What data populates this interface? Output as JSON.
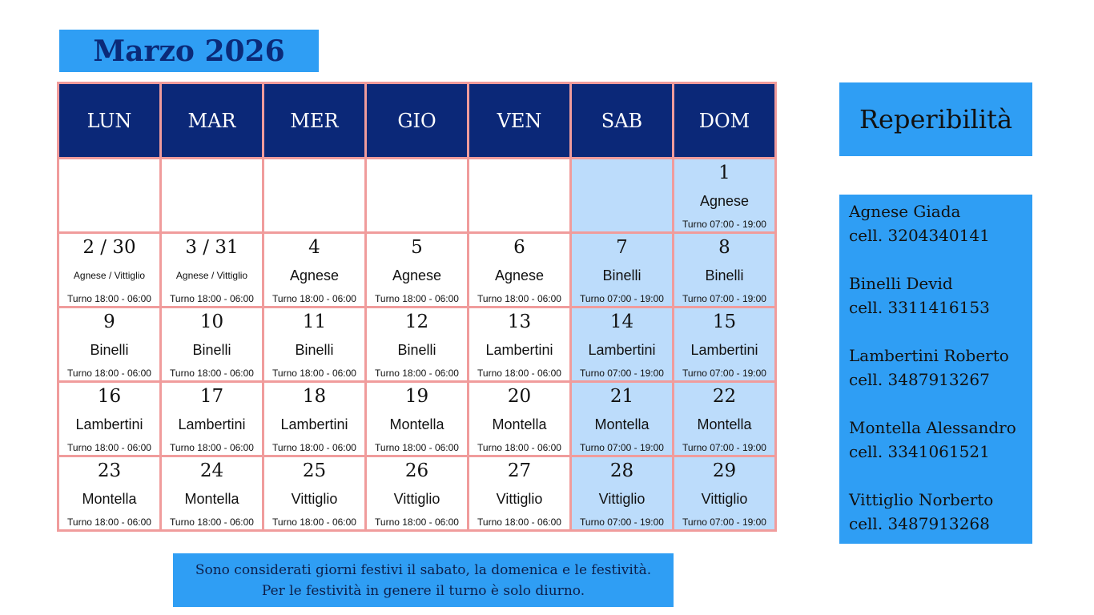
{
  "title": "Marzo 2026",
  "calendar": {
    "headers": [
      "LUN",
      "MAR",
      "MER",
      "GIO",
      "VEN",
      "SAB",
      "DOM"
    ],
    "weeks": [
      [
        null,
        null,
        null,
        null,
        null,
        null,
        {
          "day": "1",
          "name": "Agnese",
          "shift": "Turno 07:00 - 19:00"
        }
      ],
      [
        {
          "day": "2 / 30",
          "name": "Agnese / Vittiglio",
          "shift": "Turno 18:00 - 06:00"
        },
        {
          "day": "3 / 31",
          "name": "Agnese / Vittiglio",
          "shift": "Turno 18:00 - 06:00"
        },
        {
          "day": "4",
          "name": "Agnese",
          "shift": "Turno 18:00 - 06:00"
        },
        {
          "day": "5",
          "name": "Agnese",
          "shift": "Turno 18:00 - 06:00"
        },
        {
          "day": "6",
          "name": "Agnese",
          "shift": "Turno 18:00 - 06:00"
        },
        {
          "day": "7",
          "name": "Binelli",
          "shift": "Turno 07:00 - 19:00"
        },
        {
          "day": "8",
          "name": "Binelli",
          "shift": "Turno 07:00 - 19:00"
        }
      ],
      [
        {
          "day": "9",
          "name": "Binelli",
          "shift": "Turno 18:00 - 06:00"
        },
        {
          "day": "10",
          "name": "Binelli",
          "shift": "Turno 18:00 - 06:00"
        },
        {
          "day": "11",
          "name": "Binelli",
          "shift": "Turno 18:00 - 06:00"
        },
        {
          "day": "12",
          "name": "Binelli",
          "shift": "Turno 18:00 - 06:00"
        },
        {
          "day": "13",
          "name": "Lambertini",
          "shift": "Turno 18:00 - 06:00"
        },
        {
          "day": "14",
          "name": "Lambertini",
          "shift": "Turno 07:00 - 19:00"
        },
        {
          "day": "15",
          "name": "Lambertini",
          "shift": "Turno 07:00 - 19:00"
        }
      ],
      [
        {
          "day": "16",
          "name": "Lambertini",
          "shift": "Turno 18:00 - 06:00"
        },
        {
          "day": "17",
          "name": "Lambertini",
          "shift": "Turno 18:00 - 06:00"
        },
        {
          "day": "18",
          "name": "Lambertini",
          "shift": "Turno 18:00 - 06:00"
        },
        {
          "day": "19",
          "name": "Montella",
          "shift": "Turno 18:00 - 06:00"
        },
        {
          "day": "20",
          "name": "Montella",
          "shift": "Turno 18:00 - 06:00"
        },
        {
          "day": "21",
          "name": "Montella",
          "shift": "Turno 07:00 - 19:00"
        },
        {
          "day": "22",
          "name": "Montella",
          "shift": "Turno 07:00 - 19:00"
        }
      ],
      [
        {
          "day": "23",
          "name": "Montella",
          "shift": "Turno 18:00 - 06:00"
        },
        {
          "day": "24",
          "name": "Montella",
          "shift": "Turno 18:00 - 06:00"
        },
        {
          "day": "25",
          "name": "Vittiglio",
          "shift": "Turno 18:00 - 06:00"
        },
        {
          "day": "26",
          "name": "Vittiglio",
          "shift": "Turno 18:00 - 06:00"
        },
        {
          "day": "27",
          "name": "Vittiglio",
          "shift": "Turno 18:00 - 06:00"
        },
        {
          "day": "28",
          "name": "Vittiglio",
          "shift": "Turno 07:00 - 19:00"
        },
        {
          "day": "29",
          "name": "Vittiglio",
          "shift": "Turno 07:00 - 19:00"
        }
      ]
    ]
  },
  "sidebar": {
    "title": "Reperibilità",
    "contacts": [
      {
        "name": "Agnese Giada",
        "phone": "cell. 3204340141"
      },
      {
        "name": "Binelli Devid",
        "phone": "cell. 3311416153"
      },
      {
        "name": "Lambertini Roberto",
        "phone": "cell. 3487913267"
      },
      {
        "name": "Montella Alessandro",
        "phone": "cell. 3341061521"
      },
      {
        "name": "Vittiglio Norberto",
        "phone": "cell. 3487913268"
      }
    ]
  },
  "note": [
    "Sono considerati giorni festivi il sabato, la domenica e le festività.",
    "Per le festività in genere il turno è solo diurno."
  ]
}
